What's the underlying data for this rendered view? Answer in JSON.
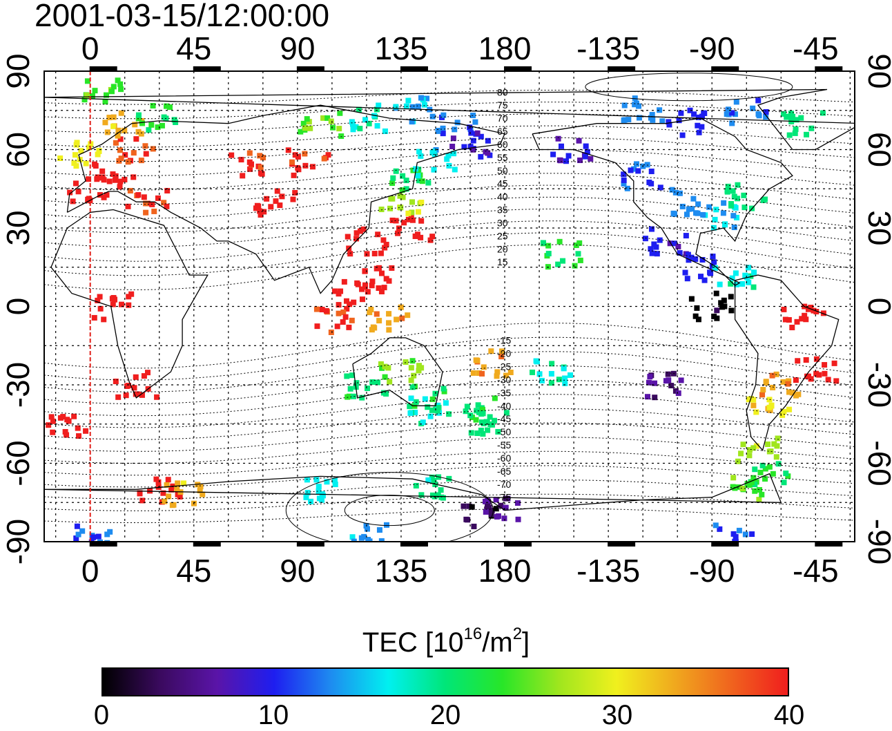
{
  "header": {
    "title": "2001-03-15/12:00:00"
  },
  "map": {
    "projection": "equirectangular",
    "center_longitude": 150,
    "top_axis_labels": [
      "0",
      "45",
      "90",
      "135",
      "180",
      "-135",
      "-90",
      "-45"
    ],
    "bottom_axis_labels": [
      "0",
      "45",
      "90",
      "135",
      "180",
      "-135",
      "-90",
      "-45"
    ],
    "left_axis_labels": [
      "90",
      "60",
      "30",
      "0",
      "-30",
      "-60",
      "-90"
    ],
    "right_axis_labels": [
      "90",
      "60",
      "30",
      "0",
      "-30",
      "-60",
      "-90"
    ],
    "reference_meridian_longitude": 0,
    "reference_meridian_color": "#e0201a",
    "contour_labels": [
      "80",
      "75",
      "70",
      "65",
      "60",
      "55",
      "50",
      "45",
      "40",
      "35",
      "30",
      "25",
      "20",
      "15",
      "-15",
      "-20",
      "-25",
      "-30",
      "-35",
      "-40",
      "-45",
      "-50",
      "-55",
      "-60",
      "-65",
      "-70",
      "-75"
    ]
  },
  "colorbar": {
    "title": "TEC [10",
    "title_exp1": "16",
    "title_mid": "/m",
    "title_exp2": "2",
    "title_end": "]",
    "tick_labels": [
      "0",
      "10",
      "20",
      "30",
      "40"
    ],
    "min": 0,
    "max": 40,
    "colormap": [
      "#000000",
      "#3a0a5e",
      "#5a14a8",
      "#1e1ef0",
      "#1e8cf0",
      "#00f0f0",
      "#00e678",
      "#28e628",
      "#a0e61e",
      "#f0f01e",
      "#f0aa1e",
      "#f0641e",
      "#f01e1e"
    ]
  },
  "tec_samples": [
    {
      "lon": 10,
      "lat": 50,
      "tec": 40
    },
    {
      "lon": 25,
      "lat": 40,
      "tec": 39
    },
    {
      "lon": 0,
      "lat": 45,
      "tec": 40
    },
    {
      "lon": 20,
      "lat": 60,
      "tec": 38
    },
    {
      "lon": -5,
      "lat": 58,
      "tec": 30
    },
    {
      "lon": 15,
      "lat": 70,
      "tec": 33
    },
    {
      "lon": 5,
      "lat": 82,
      "tec": 24
    },
    {
      "lon": 30,
      "lat": 72,
      "tec": 22
    },
    {
      "lon": 80,
      "lat": 40,
      "tec": 40
    },
    {
      "lon": 70,
      "lat": 55,
      "tec": 39
    },
    {
      "lon": 95,
      "lat": 55,
      "tec": 39
    },
    {
      "lon": 100,
      "lat": 70,
      "tec": 25
    },
    {
      "lon": 120,
      "lat": 72,
      "tec": 18
    },
    {
      "lon": 140,
      "lat": 75,
      "tec": 15
    },
    {
      "lon": 160,
      "lat": 70,
      "tec": 12
    },
    {
      "lon": 165,
      "lat": 62,
      "tec": 9
    },
    {
      "lon": 140,
      "lat": 30,
      "tec": 40
    },
    {
      "lon": 135,
      "lat": 40,
      "tec": 28
    },
    {
      "lon": 140,
      "lat": 48,
      "tec": 22
    },
    {
      "lon": 150,
      "lat": 55,
      "tec": 16
    },
    {
      "lon": 120,
      "lat": 25,
      "tec": 40
    },
    {
      "lon": 115,
      "lat": 5,
      "tec": 40
    },
    {
      "lon": 105,
      "lat": -5,
      "tec": 39
    },
    {
      "lon": 125,
      "lat": 10,
      "tec": 40
    },
    {
      "lon": 130,
      "lat": -5,
      "tec": 34
    },
    {
      "lon": 135,
      "lat": -25,
      "tec": 26
    },
    {
      "lon": 120,
      "lat": -30,
      "tec": 21
    },
    {
      "lon": 145,
      "lat": -35,
      "tec": 21
    },
    {
      "lon": 148,
      "lat": -40,
      "tec": 18
    },
    {
      "lon": 170,
      "lat": -40,
      "tec": 21
    },
    {
      "lon": 172,
      "lat": -45,
      "tec": 20
    },
    {
      "lon": 175,
      "lat": -22,
      "tec": 34
    },
    {
      "lon": 20,
      "lat": -30,
      "tec": 40
    },
    {
      "lon": 10,
      "lat": 0,
      "tec": 40
    },
    {
      "lon": -10,
      "lat": -45,
      "tec": 40
    },
    {
      "lon": 30,
      "lat": -70,
      "tec": 40
    },
    {
      "lon": 40,
      "lat": -72,
      "tec": 33
    },
    {
      "lon": -150,
      "lat": 60,
      "tec": 8
    },
    {
      "lon": -120,
      "lat": 50,
      "tec": 11
    },
    {
      "lon": -100,
      "lat": 40,
      "tec": 13
    },
    {
      "lon": -85,
      "lat": 35,
      "tec": 15
    },
    {
      "lon": -75,
      "lat": 42,
      "tec": 20
    },
    {
      "lon": -110,
      "lat": 25,
      "tec": 9
    },
    {
      "lon": -95,
      "lat": 15,
      "tec": 10
    },
    {
      "lon": -80,
      "lat": 10,
      "tec": 18
    },
    {
      "lon": -155,
      "lat": 20,
      "tec": 22
    },
    {
      "lon": -90,
      "lat": 0,
      "tec": 1
    },
    {
      "lon": -50,
      "lat": -5,
      "tec": 40
    },
    {
      "lon": -45,
      "lat": -25,
      "tec": 40
    },
    {
      "lon": -60,
      "lat": -30,
      "tec": 34
    },
    {
      "lon": -65,
      "lat": -40,
      "tec": 31
    },
    {
      "lon": -70,
      "lat": -55,
      "tec": 27
    },
    {
      "lon": -65,
      "lat": -65,
      "tec": 22
    },
    {
      "lon": -75,
      "lat": -70,
      "tec": 24
    },
    {
      "lon": -110,
      "lat": -30,
      "tec": 5
    },
    {
      "lon": -160,
      "lat": -25,
      "tec": 18
    },
    {
      "lon": -75,
      "lat": 75,
      "tec": 12
    },
    {
      "lon": -50,
      "lat": 70,
      "tec": 20
    },
    {
      "lon": -100,
      "lat": 70,
      "tec": 10
    },
    {
      "lon": -120,
      "lat": 75,
      "tec": 14
    },
    {
      "lon": 100,
      "lat": -70,
      "tec": 17
    },
    {
      "lon": 150,
      "lat": -70,
      "tec": 19
    },
    {
      "lon": 170,
      "lat": -80,
      "tec": 2
    },
    {
      "lon": 180,
      "lat": -77,
      "tec": 6
    },
    {
      "lon": 0,
      "lat": -88,
      "tec": 12
    },
    {
      "lon": 120,
      "lat": -88,
      "tec": 14
    },
    {
      "lon": -80,
      "lat": -88,
      "tec": 11
    }
  ]
}
